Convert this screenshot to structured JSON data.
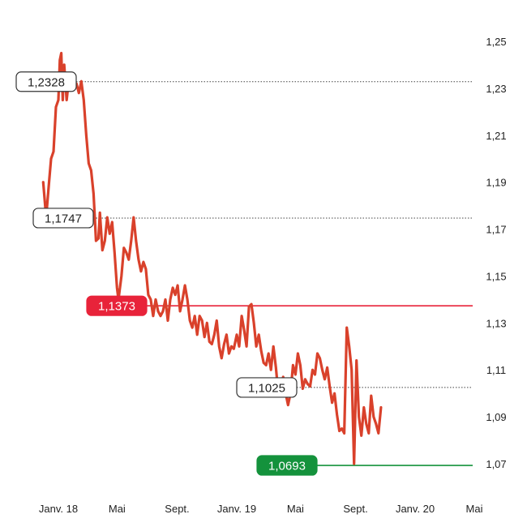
{
  "chart_data": {
    "type": "line",
    "title": "",
    "xlabel": "",
    "ylabel": "",
    "ylim": [
      1.06,
      1.255
    ],
    "xlim": [
      "2017-12-01",
      "2020-05-31"
    ],
    "grid": false,
    "x_ticks": [
      {
        "label": "Janv. 18",
        "date": "2018-01-01"
      },
      {
        "label": "Mai",
        "date": "2018-05-01"
      },
      {
        "label": "Sept.",
        "date": "2018-09-01"
      },
      {
        "label": "Janv. 19",
        "date": "2019-01-01"
      },
      {
        "label": "Mai",
        "date": "2019-05-01"
      },
      {
        "label": "Sept.",
        "date": "2019-09-01"
      },
      {
        "label": "Janv. 20",
        "date": "2020-01-01"
      },
      {
        "label": "Mai",
        "date": "2020-05-01"
      }
    ],
    "y_ticks": [
      {
        "label": "1,25",
        "value": 1.25
      },
      {
        "label": "1,23",
        "value": 1.23
      },
      {
        "label": "1,21",
        "value": 1.21
      },
      {
        "label": "1,19",
        "value": 1.19
      },
      {
        "label": "1,17",
        "value": 1.17
      },
      {
        "label": "1,15",
        "value": 1.15
      },
      {
        "label": "1,13",
        "value": 1.13
      },
      {
        "label": "1,11",
        "value": 1.11
      },
      {
        "label": "1,09",
        "value": 1.09
      },
      {
        "label": "1,07",
        "value": 1.07
      }
    ],
    "reference_lines": [
      {
        "label": "1,2328",
        "value": 1.2328,
        "style": "dotted",
        "callout_color": "#ffffff",
        "text_color": "#222222"
      },
      {
        "label": "1,1747",
        "value": 1.1747,
        "style": "dotted",
        "callout_color": "#ffffff",
        "text_color": "#222222"
      },
      {
        "label": "1,1373",
        "value": 1.1373,
        "style": "solid",
        "line_color": "#e8233a",
        "callout_color": "#e8233a",
        "text_color": "#ffffff"
      },
      {
        "label": "1,1025",
        "value": 1.1025,
        "style": "dotted",
        "callout_color": "#ffffff",
        "text_color": "#222222"
      },
      {
        "label": "1,0693",
        "value": 1.0693,
        "style": "solid",
        "line_color": "#14923c",
        "callout_color": "#14923c",
        "text_color": "#ffffff"
      }
    ],
    "series": [
      {
        "color": "#d9412b",
        "points": [
          [
            "2017-12-01",
            1.19
          ],
          [
            "2017-12-07",
            1.175
          ],
          [
            "2017-12-13",
            1.19
          ],
          [
            "2017-12-17",
            1.2
          ],
          [
            "2017-12-22",
            1.203
          ],
          [
            "2017-12-27",
            1.222
          ],
          [
            "2018-01-01",
            1.225
          ],
          [
            "2018-01-04",
            1.242
          ],
          [
            "2018-01-07",
            1.245
          ],
          [
            "2018-01-10",
            1.225
          ],
          [
            "2018-01-13",
            1.24
          ],
          [
            "2018-01-18",
            1.225
          ],
          [
            "2018-01-23",
            1.235
          ],
          [
            "2018-01-28",
            1.233
          ],
          [
            "2018-02-02",
            1.232
          ],
          [
            "2018-02-07",
            1.232
          ],
          [
            "2018-02-12",
            1.228
          ],
          [
            "2018-02-17",
            1.233
          ],
          [
            "2018-02-22",
            1.225
          ],
          [
            "2018-02-27",
            1.21
          ],
          [
            "2018-03-04",
            1.198
          ],
          [
            "2018-03-09",
            1.195
          ],
          [
            "2018-03-14",
            1.185
          ],
          [
            "2018-03-19",
            1.165
          ],
          [
            "2018-03-24",
            1.166
          ],
          [
            "2018-03-27",
            1.177
          ],
          [
            "2018-04-01",
            1.161
          ],
          [
            "2018-04-06",
            1.165
          ],
          [
            "2018-04-11",
            1.175
          ],
          [
            "2018-04-16",
            1.168
          ],
          [
            "2018-04-21",
            1.173
          ],
          [
            "2018-04-26",
            1.16
          ],
          [
            "2018-05-01",
            1.145
          ],
          [
            "2018-05-04",
            1.14
          ],
          [
            "2018-05-10",
            1.15
          ],
          [
            "2018-05-15",
            1.162
          ],
          [
            "2018-05-20",
            1.16
          ],
          [
            "2018-05-25",
            1.157
          ],
          [
            "2018-05-30",
            1.165
          ],
          [
            "2018-06-04",
            1.175
          ],
          [
            "2018-06-09",
            1.165
          ],
          [
            "2018-06-14",
            1.157
          ],
          [
            "2018-06-19",
            1.152
          ],
          [
            "2018-06-24",
            1.156
          ],
          [
            "2018-06-29",
            1.153
          ],
          [
            "2018-07-04",
            1.142
          ],
          [
            "2018-07-09",
            1.14
          ],
          [
            "2018-07-14",
            1.133
          ],
          [
            "2018-07-19",
            1.14
          ],
          [
            "2018-07-24",
            1.135
          ],
          [
            "2018-07-29",
            1.133
          ],
          [
            "2018-08-03",
            1.135
          ],
          [
            "2018-08-08",
            1.14
          ],
          [
            "2018-08-13",
            1.131
          ],
          [
            "2018-08-18",
            1.14
          ],
          [
            "2018-08-23",
            1.145
          ],
          [
            "2018-08-28",
            1.142
          ],
          [
            "2018-09-02",
            1.146
          ],
          [
            "2018-09-07",
            1.135
          ],
          [
            "2018-09-12",
            1.14
          ],
          [
            "2018-09-17",
            1.146
          ],
          [
            "2018-09-22",
            1.14
          ],
          [
            "2018-09-27",
            1.131
          ],
          [
            "2018-10-02",
            1.128
          ],
          [
            "2018-10-07",
            1.133
          ],
          [
            "2018-10-12",
            1.125
          ],
          [
            "2018-10-17",
            1.133
          ],
          [
            "2018-10-22",
            1.131
          ],
          [
            "2018-10-27",
            1.124
          ],
          [
            "2018-11-01",
            1.13
          ],
          [
            "2018-11-06",
            1.122
          ],
          [
            "2018-11-11",
            1.121
          ],
          [
            "2018-11-16",
            1.125
          ],
          [
            "2018-11-21",
            1.131
          ],
          [
            "2018-11-26",
            1.12
          ],
          [
            "2018-12-01",
            1.115
          ],
          [
            "2018-12-06",
            1.121
          ],
          [
            "2018-12-11",
            1.125
          ],
          [
            "2018-12-16",
            1.117
          ],
          [
            "2018-12-21",
            1.12
          ],
          [
            "2018-12-26",
            1.119
          ],
          [
            "2019-01-01",
            1.125
          ],
          [
            "2019-01-06",
            1.12
          ],
          [
            "2019-01-11",
            1.133
          ],
          [
            "2019-01-16",
            1.127
          ],
          [
            "2019-01-21",
            1.12
          ],
          [
            "2019-01-26",
            1.137
          ],
          [
            "2019-01-31",
            1.138
          ],
          [
            "2019-02-05",
            1.13
          ],
          [
            "2019-02-10",
            1.12
          ],
          [
            "2019-02-15",
            1.125
          ],
          [
            "2019-02-20",
            1.118
          ],
          [
            "2019-02-25",
            1.113
          ],
          [
            "2019-03-02",
            1.112
          ],
          [
            "2019-03-07",
            1.117
          ],
          [
            "2019-03-12",
            1.11
          ],
          [
            "2019-03-17",
            1.12
          ],
          [
            "2019-03-22",
            1.111
          ],
          [
            "2019-03-27",
            1.1
          ],
          [
            "2019-04-01",
            1.104
          ],
          [
            "2019-04-06",
            1.107
          ],
          [
            "2019-04-11",
            1.1
          ],
          [
            "2019-04-16",
            1.095
          ],
          [
            "2019-04-21",
            1.1
          ],
          [
            "2019-04-26",
            1.112
          ],
          [
            "2019-05-01",
            1.108
          ],
          [
            "2019-05-06",
            1.117
          ],
          [
            "2019-05-11",
            1.112
          ],
          [
            "2019-05-16",
            1.102
          ],
          [
            "2019-05-21",
            1.106
          ],
          [
            "2019-05-26",
            1.104
          ],
          [
            "2019-05-31",
            1.103
          ],
          [
            "2019-06-05",
            1.11
          ],
          [
            "2019-06-10",
            1.108
          ],
          [
            "2019-06-15",
            1.117
          ],
          [
            "2019-06-20",
            1.115
          ],
          [
            "2019-06-25",
            1.11
          ],
          [
            "2019-06-30",
            1.106
          ],
          [
            "2019-07-05",
            1.111
          ],
          [
            "2019-07-10",
            1.103
          ],
          [
            "2019-07-15",
            1.096
          ],
          [
            "2019-07-20",
            1.1
          ],
          [
            "2019-07-25",
            1.091
          ],
          [
            "2019-07-30",
            1.084
          ],
          [
            "2019-08-04",
            1.085
          ],
          [
            "2019-08-09",
            1.083
          ],
          [
            "2019-08-14",
            1.128
          ],
          [
            "2019-08-19",
            1.12
          ],
          [
            "2019-08-24",
            1.11
          ],
          [
            "2019-08-29",
            1.07
          ],
          [
            "2019-09-03",
            1.114
          ],
          [
            "2019-09-08",
            1.09
          ],
          [
            "2019-09-13",
            1.082
          ],
          [
            "2019-09-18",
            1.094
          ],
          [
            "2019-09-23",
            1.087
          ],
          [
            "2019-09-28",
            1.083
          ],
          [
            "2019-10-03",
            1.099
          ],
          [
            "2019-10-08",
            1.09
          ],
          [
            "2019-10-13",
            1.087
          ],
          [
            "2019-10-18",
            1.083
          ],
          [
            "2019-10-23",
            1.094
          ]
        ]
      }
    ]
  }
}
